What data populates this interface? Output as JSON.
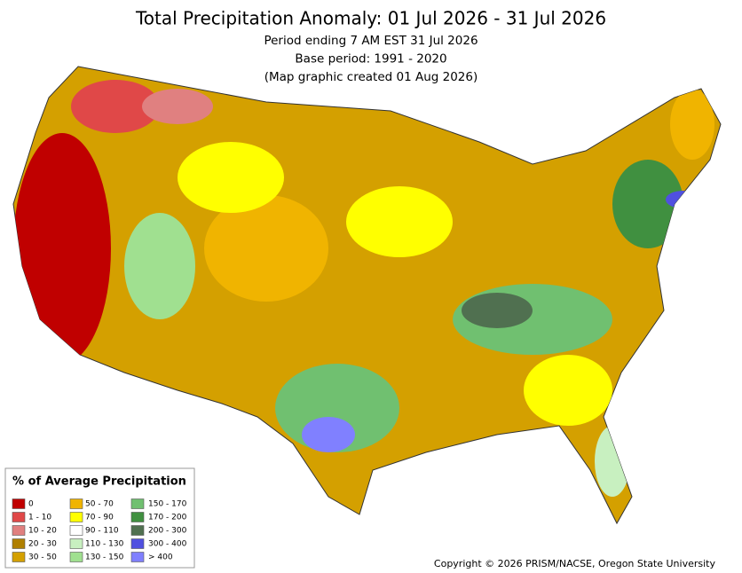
{
  "header": {
    "title": "Total Precipitation Anomaly: 01 Jul 2026 - 31 Jul 2026",
    "lines": [
      "Period ending 7 AM EST 31 Jul 2026",
      "Base period: 1991 - 2020",
      "(Map graphic created 01 Aug 2026)"
    ]
  },
  "legend": {
    "title": "% of Average Precipitation",
    "items": [
      {
        "label": "0",
        "color": "#c00000"
      },
      {
        "label": "1 - 10",
        "color": "#e04848"
      },
      {
        "label": "10 - 20",
        "color": "#e08080"
      },
      {
        "label": "20 - 30",
        "color": "#b08000"
      },
      {
        "label": "30 - 50",
        "color": "#d4a000"
      },
      {
        "label": "50 - 70",
        "color": "#f0b400"
      },
      {
        "label": "70 - 90",
        "color": "#ffff00"
      },
      {
        "label": "90 - 110",
        "color": "#ffffff"
      },
      {
        "label": "110 - 130",
        "color": "#c8f0c0"
      },
      {
        "label": "130 - 150",
        "color": "#a0e090"
      },
      {
        "label": "150 - 170",
        "color": "#70c070"
      },
      {
        "label": "170 - 200",
        "color": "#409040"
      },
      {
        "label": "200 - 300",
        "color": "#507050"
      },
      {
        "label": "300 - 400",
        "color": "#5050e0"
      },
      {
        "label": "> 400",
        "color": "#8080ff"
      }
    ]
  },
  "copyright": "Copyright © 2026 PRISM/NACSE, Oregon State University"
}
